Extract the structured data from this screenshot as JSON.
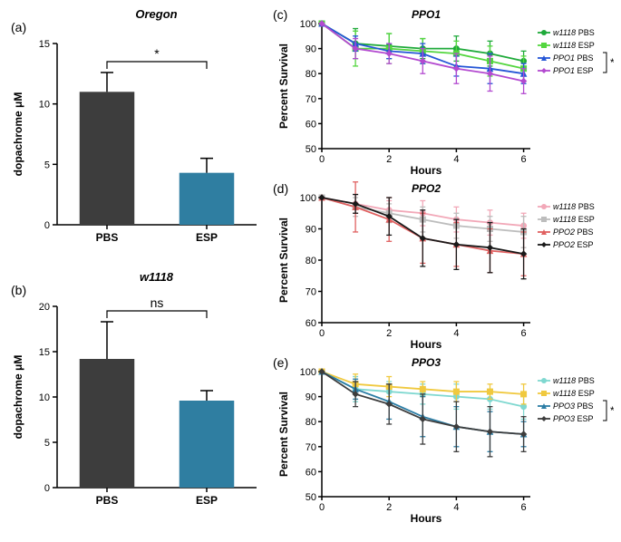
{
  "panel_a": {
    "label": "(a)",
    "title": "Oregon",
    "type": "bar",
    "ylabel": "dopachrome μM",
    "categories": [
      "PBS",
      "ESP"
    ],
    "values": [
      11.0,
      4.3
    ],
    "errors": [
      1.6,
      1.2
    ],
    "bar_colors": [
      "#3d3d3d",
      "#2f7ea1"
    ],
    "ylim": [
      0,
      15
    ],
    "ytick_step": 5,
    "significance": "*",
    "bar_width": 0.55,
    "plot_bg": "#ffffff"
  },
  "panel_b": {
    "label": "(b)",
    "title": "w1118",
    "type": "bar",
    "ylabel": "dopachrome μM",
    "categories": [
      "PBS",
      "ESP"
    ],
    "values": [
      14.2,
      9.6
    ],
    "errors": [
      4.1,
      1.1
    ],
    "bar_colors": [
      "#3d3d3d",
      "#2f7ea1"
    ],
    "ylim": [
      0,
      20
    ],
    "ytick_step": 5,
    "significance": "ns",
    "bar_width": 0.55,
    "plot_bg": "#ffffff"
  },
  "panel_c": {
    "label": "(c)",
    "title": "PPO1",
    "type": "line",
    "xlabel": "Hours",
    "ylabel": "Percent Survival",
    "xlim": [
      0,
      6.2
    ],
    "ylim": [
      50,
      100
    ],
    "ytick_step": 10,
    "xtick_step": 2,
    "series": [
      {
        "name": "w1118 PBS",
        "suffix": " PBS",
        "prefix": "w1118",
        "color": "#1faa3a",
        "marker": "circle",
        "x": [
          0,
          1,
          2,
          3,
          4,
          5,
          6
        ],
        "y": [
          100,
          92,
          91,
          90,
          90,
          88,
          85
        ],
        "err": [
          0,
          6,
          5,
          4,
          5,
          5,
          4
        ]
      },
      {
        "name": "w1118 ESP",
        "suffix": " ESP",
        "prefix": "w1118",
        "color": "#54d63f",
        "marker": "square",
        "x": [
          0,
          1,
          2,
          3,
          4,
          5,
          6
        ],
        "y": [
          100,
          90,
          90,
          89,
          88,
          85,
          82
        ],
        "err": [
          0,
          7,
          6,
          5,
          5,
          6,
          5
        ]
      },
      {
        "name": "PPO1 PBS",
        "suffix": " PBS",
        "prefix": "PPO1",
        "color": "#2556d6",
        "marker": "triangle",
        "x": [
          0,
          1,
          2,
          3,
          4,
          5,
          6
        ],
        "y": [
          100,
          92,
          89,
          88,
          83,
          82,
          80
        ],
        "err": [
          0,
          3,
          3,
          4,
          4,
          6,
          4
        ]
      },
      {
        "name": "PPO1 ESP",
        "suffix": " ESP",
        "prefix": "PPO1",
        "color": "#b34ad0",
        "marker": "diamond",
        "x": [
          0,
          1,
          2,
          3,
          4,
          5,
          6
        ],
        "y": [
          100,
          90,
          88,
          85,
          82,
          80,
          77
        ],
        "err": [
          0,
          4,
          4,
          5,
          6,
          7,
          5
        ]
      }
    ],
    "bracket": {
      "from": 2,
      "to": 3,
      "label": "*"
    }
  },
  "panel_d": {
    "label": "(d)",
    "title": "PPO2",
    "type": "line",
    "xlabel": "Hours",
    "ylabel": "Percent Survival",
    "xlim": [
      0,
      6.2
    ],
    "ylim": [
      60,
      100
    ],
    "ytick_step": 10,
    "xtick_step": 2,
    "series": [
      {
        "name": "w1118 PBS",
        "suffix": " PBS",
        "prefix": "w1118",
        "color": "#f2a8b8",
        "marker": "circle",
        "x": [
          0,
          1,
          2,
          3,
          4,
          5,
          6
        ],
        "y": [
          100,
          98,
          96,
          95,
          93,
          92,
          91
        ],
        "err": [
          0,
          3,
          3,
          4,
          4,
          4,
          4
        ]
      },
      {
        "name": "w1118 ESP",
        "suffix": " ESP",
        "prefix": "w1118",
        "color": "#bdbdbd",
        "marker": "square",
        "x": [
          0,
          1,
          2,
          3,
          4,
          5,
          6
        ],
        "y": [
          100,
          97,
          95,
          93,
          91,
          90,
          89
        ],
        "err": [
          0,
          3,
          3,
          4,
          4,
          4,
          5
        ]
      },
      {
        "name": "PPO2 PBS",
        "suffix": " PBS",
        "prefix": "PPO2",
        "color": "#e06060",
        "marker": "triangle",
        "x": [
          0,
          1,
          2,
          3,
          4,
          5,
          6
        ],
        "y": [
          100,
          97,
          93,
          87,
          85,
          83,
          82
        ],
        "err": [
          0,
          8,
          7,
          8,
          7,
          7,
          7
        ]
      },
      {
        "name": "PPO2 ESP",
        "suffix": " ESP",
        "prefix": "PPO2",
        "color": "#1a1a1a",
        "marker": "diamond",
        "x": [
          0,
          1,
          2,
          3,
          4,
          5,
          6
        ],
        "y": [
          100,
          98,
          94,
          87,
          85,
          84,
          82
        ],
        "err": [
          0,
          3,
          6,
          9,
          8,
          8,
          8
        ]
      }
    ],
    "bracket": null
  },
  "panel_e": {
    "label": "(e)",
    "title": "PPO3",
    "type": "line",
    "xlabel": "Hours",
    "ylabel": "Percent Survival",
    "xlim": [
      0,
      6.2
    ],
    "ylim": [
      50,
      100
    ],
    "ytick_step": 10,
    "xtick_step": 2,
    "series": [
      {
        "name": "w1118 PBS",
        "suffix": " PBS",
        "prefix": "w1118",
        "color": "#7fd8d0",
        "marker": "circle",
        "x": [
          0,
          1,
          2,
          3,
          4,
          5,
          6
        ],
        "y": [
          100,
          93,
          92,
          91,
          90,
          89,
          86
        ],
        "err": [
          0,
          5,
          4,
          4,
          5,
          4,
          5
        ]
      },
      {
        "name": "w1118 ESP",
        "suffix": " ESP",
        "prefix": "w1118",
        "color": "#f0c93f",
        "marker": "square",
        "x": [
          0,
          1,
          2,
          3,
          4,
          5,
          6
        ],
        "y": [
          100,
          95,
          94,
          93,
          92,
          92,
          91
        ],
        "err": [
          0,
          4,
          4,
          3,
          4,
          3,
          4
        ]
      },
      {
        "name": "PPO3 PBS",
        "suffix": " PBS",
        "prefix": "PPO3",
        "color": "#2b7da5",
        "marker": "triangle",
        "x": [
          0,
          1,
          2,
          3,
          4,
          5,
          6
        ],
        "y": [
          100,
          93,
          88,
          82,
          78,
          76,
          75
        ],
        "err": [
          0,
          4,
          7,
          8,
          8,
          8,
          5
        ]
      },
      {
        "name": "PPO3 ESP",
        "suffix": " ESP",
        "prefix": "PPO3",
        "color": "#3d3d3d",
        "marker": "diamond",
        "x": [
          0,
          1,
          2,
          3,
          4,
          5,
          6
        ],
        "y": [
          100,
          91,
          87,
          81,
          78,
          76,
          75
        ],
        "err": [
          0,
          5,
          8,
          10,
          10,
          10,
          7
        ]
      }
    ],
    "bracket": {
      "from": 2,
      "to": 3,
      "label": "*"
    }
  }
}
